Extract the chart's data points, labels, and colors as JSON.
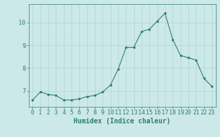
{
  "x": [
    0,
    1,
    2,
    3,
    4,
    5,
    6,
    7,
    8,
    9,
    10,
    11,
    12,
    13,
    14,
    15,
    16,
    17,
    18,
    19,
    20,
    21,
    22,
    23
  ],
  "y": [
    6.6,
    6.95,
    6.85,
    6.8,
    6.6,
    6.6,
    6.65,
    6.75,
    6.8,
    6.95,
    7.25,
    7.95,
    8.9,
    8.9,
    9.6,
    9.7,
    10.05,
    10.4,
    9.25,
    8.55,
    8.45,
    8.35,
    7.55,
    7.2
  ],
  "line_color": "#2e7d6e",
  "marker_color": "#2e7d6e",
  "bg_color": "#cce8e8",
  "grid_color": "#aad4d4",
  "xlabel": "Humidex (Indice chaleur)",
  "xlabel_fontsize": 7,
  "tick_fontsize": 6,
  "ylim": [
    6.3,
    10.8
  ],
  "xlim": [
    -0.5,
    23.5
  ],
  "yticks": [
    7,
    8,
    9,
    10
  ],
  "xticks": [
    0,
    1,
    2,
    3,
    4,
    5,
    6,
    7,
    8,
    9,
    10,
    11,
    12,
    13,
    14,
    15,
    16,
    17,
    18,
    19,
    20,
    21,
    22,
    23
  ]
}
